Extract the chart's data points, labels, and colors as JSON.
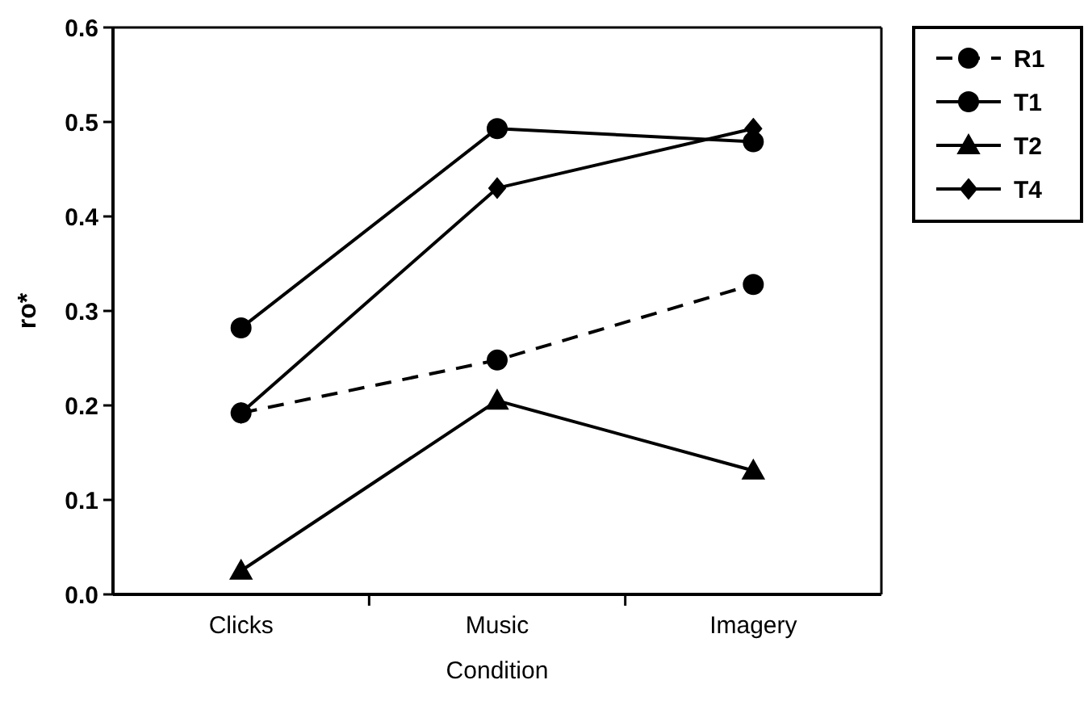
{
  "chart_data": {
    "type": "line",
    "xlabel": "Condition",
    "ylabel": "ro*",
    "categories": [
      "Clicks",
      "Music",
      "Imagery"
    ],
    "ylim": [
      0,
      0.6
    ],
    "yticks": [
      {
        "value": 0,
        "label": "0.0"
      },
      {
        "value": 0.1,
        "label": "0.1"
      },
      {
        "value": 0.2,
        "label": "0.2"
      },
      {
        "value": 0.3,
        "label": "0.3"
      },
      {
        "value": 0.4,
        "label": "0.4"
      },
      {
        "value": 0.5,
        "label": "0.5"
      },
      {
        "value": 0.6,
        "label": "0.6"
      }
    ],
    "legend": "top right",
    "grid": false,
    "series": [
      {
        "name": "R1",
        "color": "#000000",
        "values": [
          0.192,
          0.248,
          0.328
        ],
        "marker": "circle",
        "line_style": "dashed"
      },
      {
        "name": "T1",
        "color": "#000000",
        "values": [
          0.282,
          0.493,
          0.479
        ],
        "marker": "circle",
        "line_style": "solid"
      },
      {
        "name": "T2",
        "color": "#000000",
        "values": [
          0.025,
          0.205,
          0.131
        ],
        "marker": "triangle",
        "line_style": "solid"
      },
      {
        "name": "T4",
        "color": "#000000",
        "values": [
          0.192,
          0.43,
          0.493
        ],
        "marker": "diamond",
        "line_style": "solid"
      }
    ]
  }
}
